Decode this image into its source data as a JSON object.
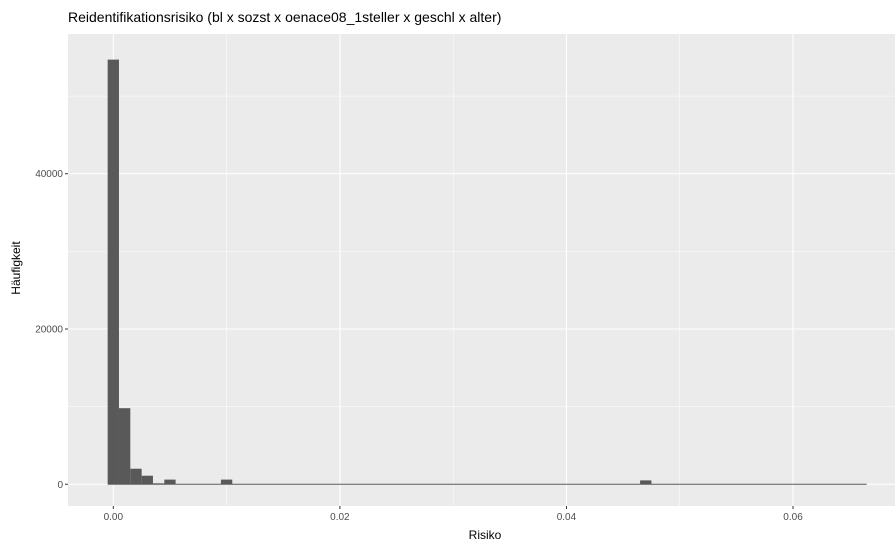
{
  "chart_data": {
    "type": "bar",
    "title": "Reidentifikationsrisiko (bl x sozst x oenace08_1steller x geschl x alter)",
    "xlabel": "Risiko",
    "ylabel": "Häufigkeit",
    "xlim": [
      -0.004,
      0.069
    ],
    "ylim": [
      -2800,
      58000
    ],
    "x_ticks": [
      0.0,
      0.02,
      0.04,
      0.06
    ],
    "x_tick_labels": [
      "0.00",
      "0.02",
      "0.04",
      "0.06"
    ],
    "y_ticks": [
      0,
      20000,
      40000
    ],
    "y_tick_labels": [
      "0",
      "20000",
      "40000"
    ],
    "bin_width": 0.001,
    "bins": [
      {
        "x0": -0.0005,
        "x1": 0.0005,
        "count": 54700
      },
      {
        "x0": 0.0005,
        "x1": 0.0015,
        "count": 9800
      },
      {
        "x0": 0.0015,
        "x1": 0.0025,
        "count": 2000
      },
      {
        "x0": 0.0025,
        "x1": 0.0035,
        "count": 1100
      },
      {
        "x0": 0.0035,
        "x1": 0.0045,
        "count": 120
      },
      {
        "x0": 0.0045,
        "x1": 0.0055,
        "count": 600
      },
      {
        "x0": 0.0095,
        "x1": 0.0105,
        "count": 600
      },
      {
        "x0": 0.0465,
        "x1": 0.0475,
        "count": 500
      }
    ],
    "range_end": 0.0665,
    "grid": true,
    "colors": {
      "panel": "#ebebeb",
      "grid": "#ffffff",
      "bar": "#595959",
      "tick": "#333333"
    }
  }
}
